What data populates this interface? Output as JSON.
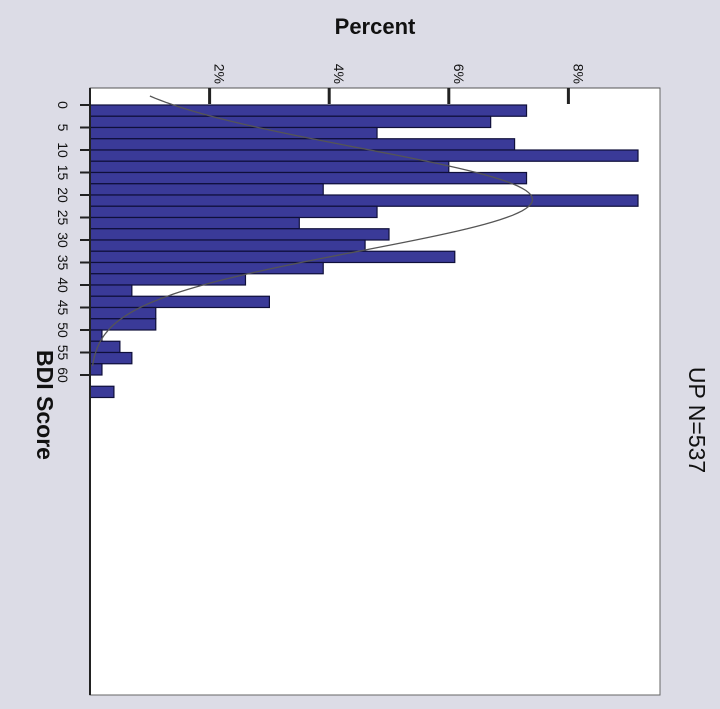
{
  "chart_data": {
    "type": "bar",
    "orientation": "horizontal",
    "title": "UP N=537",
    "xlabel": "Percent",
    "ylabel": "BDI Score",
    "bin_width": 2.5,
    "x_ticks": [
      "2%",
      "4%",
      "6%",
      "8%"
    ],
    "x_tick_values": [
      2,
      4,
      6,
      8
    ],
    "xlim": [
      0,
      9.5
    ],
    "y_ticks": [
      "0",
      "5",
      "10",
      "15",
      "20",
      "25",
      "30",
      "35",
      "40",
      "45",
      "50",
      "55",
      "60"
    ],
    "y_tick_values": [
      0,
      5,
      10,
      15,
      20,
      25,
      30,
      35,
      40,
      45,
      50,
      55,
      60
    ],
    "ylim": [
      0,
      60
    ],
    "bins": [
      {
        "start": 0,
        "value": 7.3
      },
      {
        "start": 2.5,
        "value": 6.7
      },
      {
        "start": 5,
        "value": 4.8
      },
      {
        "start": 7.5,
        "value": 7.1
      },
      {
        "start": 10,
        "value": 9.2
      },
      {
        "start": 12.5,
        "value": 6.0
      },
      {
        "start": 15,
        "value": 7.3
      },
      {
        "start": 17.5,
        "value": 3.9
      },
      {
        "start": 20,
        "value": 9.2
      },
      {
        "start": 22.5,
        "value": 4.8
      },
      {
        "start": 25,
        "value": 3.5
      },
      {
        "start": 27.5,
        "value": 5.0
      },
      {
        "start": 30,
        "value": 4.6
      },
      {
        "start": 32.5,
        "value": 6.1
      },
      {
        "start": 35,
        "value": 3.9
      },
      {
        "start": 37.5,
        "value": 2.6
      },
      {
        "start": 40,
        "value": 0.7
      },
      {
        "start": 42.5,
        "value": 3.0
      },
      {
        "start": 45,
        "value": 1.1
      },
      {
        "start": 47.5,
        "value": 1.1
      },
      {
        "start": 50,
        "value": 0.2
      },
      {
        "start": 52.5,
        "value": 0.5
      },
      {
        "start": 55,
        "value": 0.7
      },
      {
        "start": 57.5,
        "value": 0.2
      },
      {
        "start": 60,
        "value": 0.0
      },
      {
        "start": 62.5,
        "value": 0.4
      }
    ],
    "normal_curve": {
      "mean": 21,
      "sd": 11.5,
      "peak": 7.4
    },
    "colors": {
      "bar": "#3a3a98",
      "bar_edge": "#0f0f3a",
      "curve": "#555555",
      "background": "#dcdce6",
      "plot_bg": "#ffffff"
    },
    "grid": false
  }
}
